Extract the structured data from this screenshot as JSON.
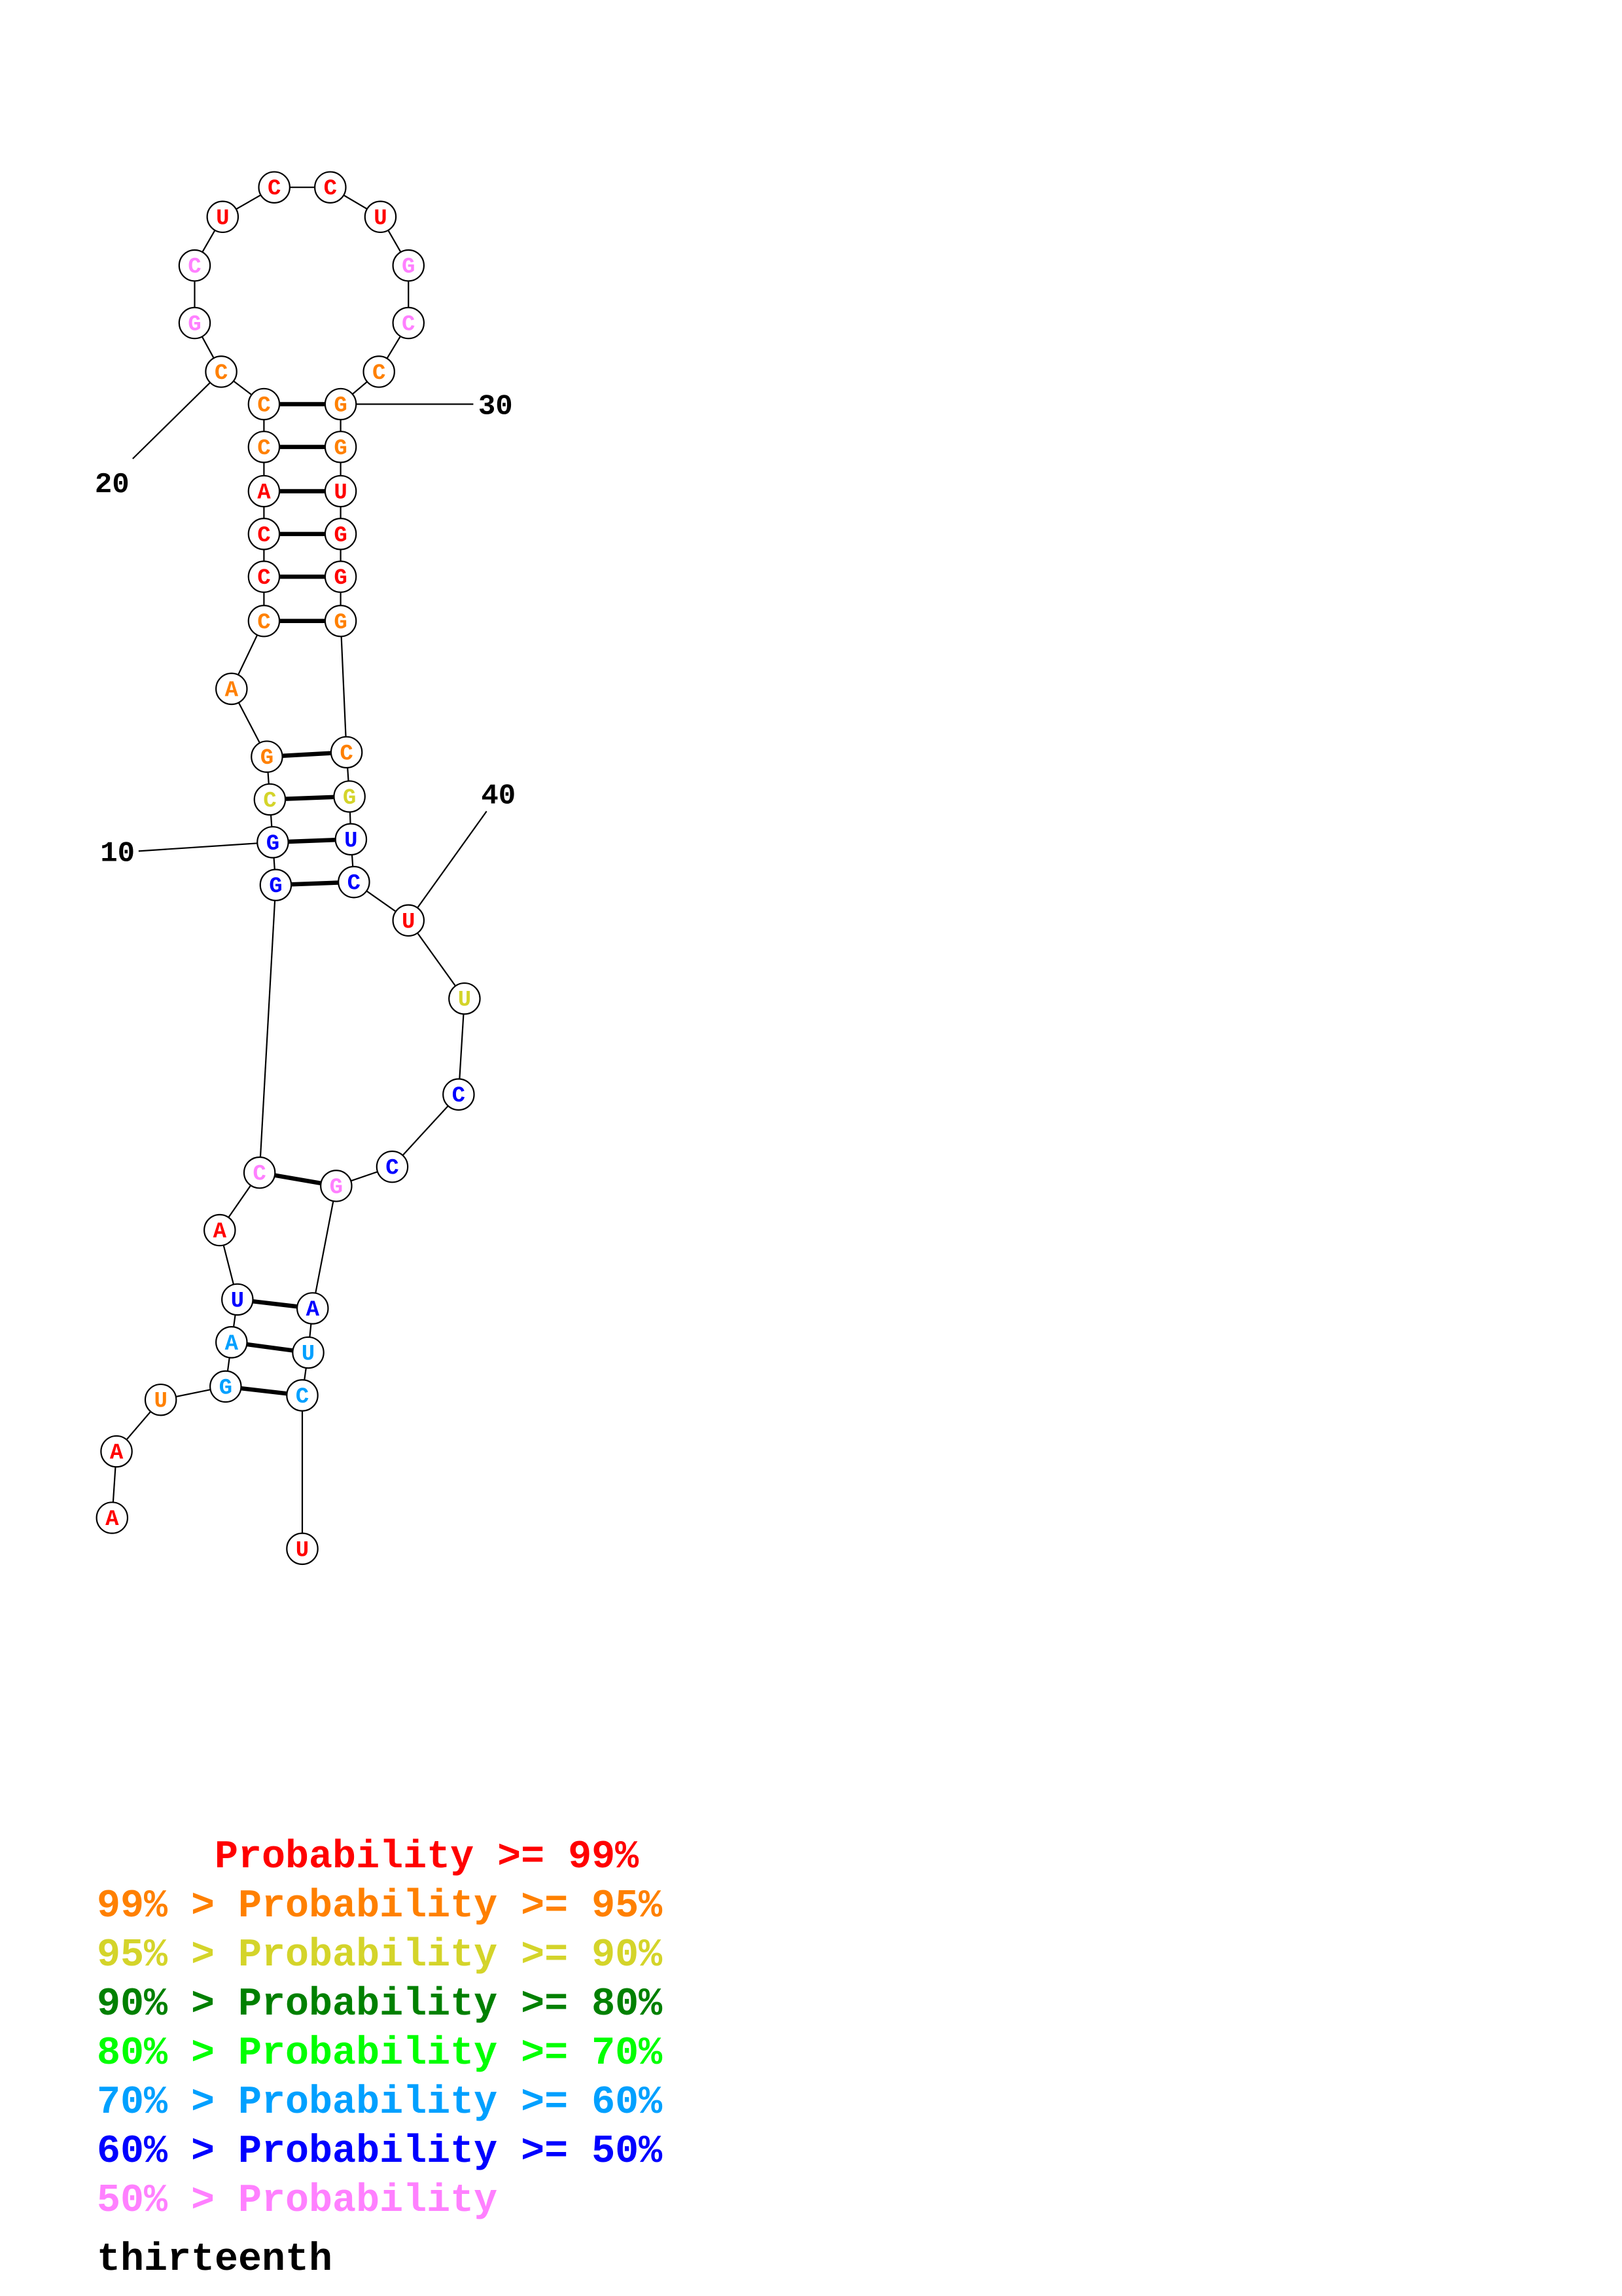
{
  "colors": {
    "p99": "#ff0000",
    "p95": "#ff8000",
    "p90": "#d4d42a",
    "p80": "#008000",
    "p70": "#00ff00",
    "p60": "#00a0ff",
    "p50": "#0000ff",
    "plow": "#ff80ff"
  },
  "nucleotides": [
    {
      "base": "A",
      "color": "p99"
    },
    {
      "base": "A",
      "color": "p99"
    },
    {
      "base": "U",
      "color": "p95"
    },
    {
      "base": "G",
      "color": "p60"
    },
    {
      "base": "A",
      "color": "p60"
    },
    {
      "base": "U",
      "color": "p50"
    },
    {
      "base": "A",
      "color": "p99"
    },
    {
      "base": "C",
      "color": "plow"
    },
    {
      "base": "G",
      "color": "p50"
    },
    {
      "base": "G",
      "color": "p50"
    },
    {
      "base": "C",
      "color": "p90"
    },
    {
      "base": "G",
      "color": "p95"
    },
    {
      "base": "A",
      "color": "p95"
    },
    {
      "base": "C",
      "color": "p95"
    },
    {
      "base": "C",
      "color": "p99"
    },
    {
      "base": "C",
      "color": "p99"
    },
    {
      "base": "A",
      "color": "p99"
    },
    {
      "base": "C",
      "color": "p95"
    },
    {
      "base": "C",
      "color": "p95"
    },
    {
      "base": "C",
      "color": "p95"
    },
    {
      "base": "G",
      "color": "plow"
    },
    {
      "base": "C",
      "color": "plow"
    },
    {
      "base": "U",
      "color": "p99"
    },
    {
      "base": "C",
      "color": "p99"
    },
    {
      "base": "C",
      "color": "p99"
    },
    {
      "base": "U",
      "color": "p99"
    },
    {
      "base": "G",
      "color": "plow"
    },
    {
      "base": "C",
      "color": "plow"
    },
    {
      "base": "C",
      "color": "p95"
    },
    {
      "base": "G",
      "color": "p95"
    },
    {
      "base": "G",
      "color": "p95"
    },
    {
      "base": "U",
      "color": "p99"
    },
    {
      "base": "G",
      "color": "p99"
    },
    {
      "base": "G",
      "color": "p99"
    },
    {
      "base": "G",
      "color": "p95"
    },
    {
      "base": "C",
      "color": "p95"
    },
    {
      "base": "G",
      "color": "p90"
    },
    {
      "base": "U",
      "color": "p50"
    },
    {
      "base": "C",
      "color": "p50"
    },
    {
      "base": "U",
      "color": "p99"
    },
    {
      "base": "U",
      "color": "p90"
    },
    {
      "base": "C",
      "color": "p50"
    },
    {
      "base": "C",
      "color": "p50"
    },
    {
      "base": "G",
      "color": "plow"
    },
    {
      "base": "A",
      "color": "p50"
    },
    {
      "base": "U",
      "color": "p60"
    },
    {
      "base": "C",
      "color": "p60"
    },
    {
      "base": "U",
      "color": "p99"
    }
  ],
  "pairs": [
    [
      4,
      47
    ],
    [
      5,
      46
    ],
    [
      6,
      45
    ],
    [
      8,
      44
    ],
    [
      9,
      39
    ],
    [
      10,
      38
    ],
    [
      11,
      37
    ],
    [
      12,
      36
    ],
    [
      14,
      35
    ],
    [
      15,
      34
    ],
    [
      16,
      33
    ],
    [
      17,
      32
    ],
    [
      18,
      31
    ],
    [
      19,
      30
    ]
  ],
  "position_labels": [
    {
      "text": "10",
      "index": 10
    },
    {
      "text": "20",
      "index": 20
    },
    {
      "text": "30",
      "index": 30
    },
    {
      "text": "40",
      "index": 40
    }
  ],
  "legend": [
    {
      "text": "     Probability >= 99%",
      "color": "p99"
    },
    {
      "text": "99% > Probability >= 95%",
      "color": "p95"
    },
    {
      "text": "95% > Probability >= 90%",
      "color": "p90"
    },
    {
      "text": "90% > Probability >= 80%",
      "color": "p80"
    },
    {
      "text": "80% > Probability >= 70%",
      "color": "p70"
    },
    {
      "text": "70% > Probability >= 60%",
      "color": "p60"
    },
    {
      "text": "60% > Probability >= 50%",
      "color": "p50"
    },
    {
      "text": "50% > Probability",
      "color": "plow"
    }
  ],
  "title": "thirteenth"
}
